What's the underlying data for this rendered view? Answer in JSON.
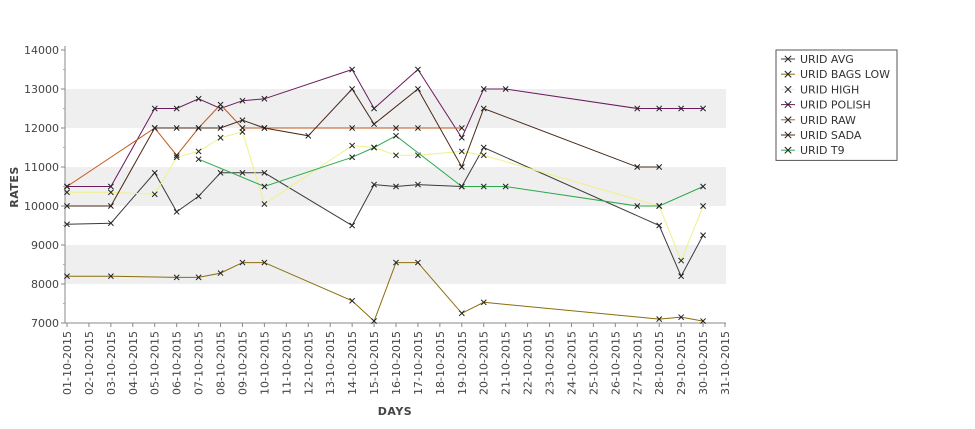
{
  "chart_data": {
    "type": "line",
    "xlabel": "DAYS",
    "ylabel": "RATES",
    "ylim": [
      7000,
      14000
    ],
    "yticks": [
      7000,
      8000,
      9000,
      10000,
      11000,
      12000,
      13000,
      14000
    ],
    "x_categories": [
      "01-10-2015",
      "02-10-2015",
      "03-10-2015",
      "04-10-2015",
      "05-10-2015",
      "06-10-2015",
      "07-10-2015",
      "08-10-2015",
      "09-10-2015",
      "10-10-2015",
      "11-10-2015",
      "12-10-2015",
      "13-10-2015",
      "14-10-2015",
      "15-10-2015",
      "16-10-2015",
      "17-10-2015",
      "18-10-2015",
      "19-10-2015",
      "20-10-2015",
      "21-10-2015",
      "22-10-2015",
      "23-10-2015",
      "24-10-2015",
      "25-10-2015",
      "26-10-2015",
      "27-10-2015",
      "28-10-2015",
      "29-10-2015",
      "30-10-2015",
      "31-10-2015"
    ],
    "grid": "alternating horizontal bands",
    "legend_position": "right",
    "series": [
      {
        "name": "URID AVG",
        "color": "#3b3b3b",
        "points": [
          [
            1,
            9530
          ],
          [
            3,
            9560
          ],
          [
            5,
            10850
          ],
          [
            6,
            9850
          ],
          [
            7,
            10250
          ],
          [
            8,
            10850
          ],
          [
            9,
            10850
          ],
          [
            10,
            10850
          ],
          [
            14,
            9500
          ],
          [
            15,
            10550
          ],
          [
            16,
            10500
          ],
          [
            17,
            10550
          ],
          [
            19,
            10500
          ],
          [
            20,
            11500
          ],
          [
            28,
            9500
          ],
          [
            29,
            8200
          ],
          [
            30,
            9250
          ]
        ]
      },
      {
        "name": "URID BAGS LOW",
        "color": "#8a6d0b",
        "points": [
          [
            1,
            8200
          ],
          [
            3,
            8200
          ],
          [
            6,
            8170
          ],
          [
            7,
            8170
          ],
          [
            8,
            8280
          ],
          [
            9,
            8550
          ],
          [
            10,
            8550
          ],
          [
            14,
            7570
          ],
          [
            15,
            7050
          ],
          [
            16,
            8550
          ],
          [
            17,
            8550
          ],
          [
            19,
            7250
          ],
          [
            20,
            7530
          ],
          [
            28,
            7100
          ],
          [
            29,
            7150
          ],
          [
            30,
            7050
          ]
        ]
      },
      {
        "name": "URID HIGH",
        "color": "#f0f08a",
        "points": [
          [
            1,
            10350
          ],
          [
            3,
            10350
          ],
          [
            5,
            10300
          ],
          [
            6,
            11250
          ],
          [
            7,
            11400
          ],
          [
            8,
            11750
          ],
          [
            9,
            11900
          ],
          [
            10,
            10050
          ],
          [
            14,
            11550
          ],
          [
            15,
            11500
          ],
          [
            16,
            11300
          ],
          [
            17,
            11300
          ],
          [
            19,
            11400
          ],
          [
            20,
            11300
          ],
          [
            28,
            10000
          ],
          [
            29,
            8600
          ],
          [
            30,
            10000
          ]
        ]
      },
      {
        "name": "URID POLISH",
        "color": "#6b1a5e",
        "points": [
          [
            1,
            10500
          ],
          [
            3,
            10500
          ],
          [
            5,
            12500
          ],
          [
            6,
            12500
          ],
          [
            7,
            12750
          ],
          [
            8,
            12500
          ],
          [
            9,
            12700
          ],
          [
            10,
            12750
          ],
          [
            14,
            13500
          ],
          [
            15,
            12500
          ],
          [
            17,
            13500
          ],
          [
            19,
            11750
          ],
          [
            20,
            13000
          ],
          [
            21,
            13000
          ],
          [
            27,
            12500
          ],
          [
            28,
            12500
          ],
          [
            29,
            12500
          ],
          [
            30,
            12500
          ]
        ]
      },
      {
        "name": "URID RAW",
        "color": "#c2571a",
        "points": [
          [
            1,
            10500
          ],
          [
            5,
            12000
          ],
          [
            6,
            11300
          ],
          [
            7,
            12000
          ],
          [
            8,
            12600
          ],
          [
            9,
            12000
          ],
          [
            10,
            12000
          ],
          [
            14,
            12000
          ],
          [
            16,
            12000
          ],
          [
            17,
            12000
          ],
          [
            19,
            12000
          ]
        ]
      },
      {
        "name": "URID SADA",
        "color": "#4a2a1a",
        "points": [
          [
            1,
            10000
          ],
          [
            3,
            10000
          ],
          [
            5,
            12000
          ],
          [
            6,
            12000
          ],
          [
            7,
            12000
          ],
          [
            8,
            12000
          ],
          [
            9,
            12200
          ],
          [
            10,
            12000
          ],
          [
            12,
            11800
          ],
          [
            14,
            13000
          ],
          [
            15,
            12100
          ],
          [
            17,
            13000
          ],
          [
            19,
            11000
          ],
          [
            20,
            12500
          ],
          [
            27,
            11000
          ],
          [
            28,
            11000
          ]
        ]
      },
      {
        "name": "URID T9",
        "color": "#2fa84a",
        "points": [
          [
            7,
            11200
          ],
          [
            10,
            10500
          ],
          [
            14,
            11250
          ],
          [
            15,
            11500
          ],
          [
            16,
            11800
          ],
          [
            19,
            10500
          ],
          [
            20,
            10500
          ],
          [
            21,
            10500
          ],
          [
            27,
            10000
          ],
          [
            28,
            10000
          ],
          [
            30,
            10500
          ]
        ]
      }
    ]
  }
}
